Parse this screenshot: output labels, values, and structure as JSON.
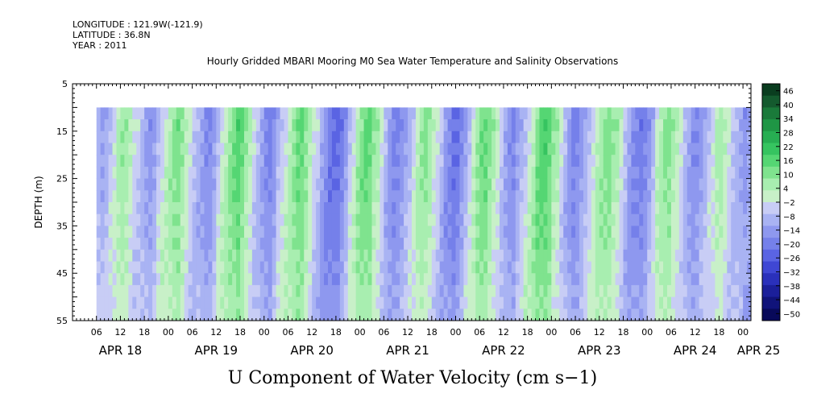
{
  "header": {
    "longitude": "LONGITUDE : 121.9W(-121.9)",
    "latitude": "LATITUDE : 36.8N",
    "year": "YEAR : 2011"
  },
  "chart_data": {
    "type": "heatmap",
    "title": "Hourly Gridded MBARI Mooring M0 Sea Water Temperature and Salinity Observations",
    "xlabel": "U Component of Water Velocity (cm s−1)",
    "ylabel": "DEPTH (m)",
    "y_range": [
      5,
      55
    ],
    "y_ticks": [
      "5",
      "15",
      "25",
      "35",
      "45",
      "55"
    ],
    "data_depth_range": [
      10,
      55
    ],
    "x_range_hours": [
      0,
      170
    ],
    "data_start_hour": 6,
    "hour_tick_labels": [
      "06",
      "12",
      "18",
      "00",
      "06",
      "12",
      "18",
      "00",
      "06",
      "12",
      "18",
      "00",
      "06",
      "12",
      "18",
      "00",
      "06",
      "12",
      "18",
      "00",
      "06",
      "12",
      "18",
      "00",
      "06",
      "12",
      "18",
      "00"
    ],
    "day_labels": [
      "APR 18",
      "APR 19",
      "APR 20",
      "APR 21",
      "APR 22",
      "APR 23",
      "APR 24",
      "APR 25"
    ],
    "colorbar_labels": [
      "46",
      "40",
      "34",
      "28",
      "22",
      "16",
      "10",
      "4",
      "−2",
      "−8",
      "−14",
      "−20",
      "−26",
      "−32",
      "−38",
      "−44",
      "−50"
    ],
    "colorbar_colors": [
      "#0a3d1f",
      "#145a2e",
      "#1a7a3a",
      "#1f9645",
      "#27ae52",
      "#36c460",
      "#55d673",
      "#7fe38e",
      "#a8eeb0",
      "#c8f0c8",
      "#c8cdf5",
      "#a9b3f3",
      "#8e98ef",
      "#7580ea",
      "#5a64e3",
      "#3f47d4",
      "#2a30bb",
      "#1b1f9a",
      "#10137a",
      "#08095a"
    ],
    "pattern_columns_hourly": [
      -8,
      -12,
      -10,
      -6,
      -2,
      4,
      8,
      10,
      6,
      2,
      -2,
      -6,
      -10,
      -14,
      -12,
      -8,
      -4,
      0,
      6,
      12,
      14,
      10,
      6,
      2,
      -2,
      -6,
      -10,
      -14,
      -16,
      -12,
      -8,
      -4,
      2,
      8,
      14,
      18,
      16,
      12,
      8,
      2,
      -4,
      -10,
      -14,
      -18,
      -14,
      -10,
      -6,
      -2,
      4,
      10,
      14,
      16,
      12,
      8,
      4,
      -2,
      -8,
      -12,
      -16,
      -20,
      -24,
      -20,
      -14,
      -8,
      -2,
      4,
      10,
      16,
      18,
      14,
      8,
      2,
      -4,
      -10,
      -14,
      -18,
      -16,
      -12,
      -8,
      -4,
      2,
      8,
      12,
      10,
      6,
      2,
      -4,
      -10,
      -14,
      -18,
      -22,
      -18,
      -12,
      -6,
      0,
      6,
      12,
      16,
      14,
      10,
      4,
      -2,
      -8,
      -12,
      -16,
      -14,
      -10,
      -6,
      -2,
      4,
      10,
      16,
      20,
      18,
      14,
      8,
      2,
      -4,
      -10,
      -16,
      -18,
      -14,
      -10,
      -6,
      -2,
      2,
      6,
      10,
      14,
      12,
      8,
      4,
      -2,
      -8,
      -12,
      -16,
      -20,
      -18,
      -14,
      -8,
      -2,
      4,
      10,
      14,
      10,
      6,
      2,
      -4,
      -8,
      -12,
      -16,
      -14,
      -10,
      -6,
      -2,
      4,
      8,
      6,
      2,
      -2,
      -6,
      -10,
      -14,
      -12,
      -8,
      -4,
      0
    ]
  }
}
